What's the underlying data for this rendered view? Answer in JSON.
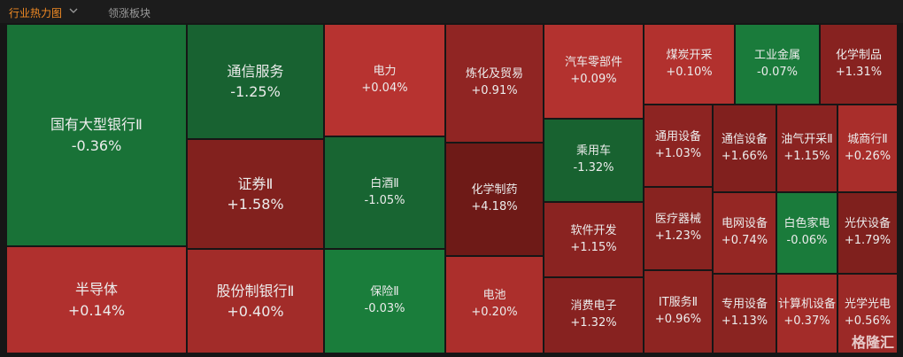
{
  "header": {
    "tabs": [
      "行业热力图",
      "领涨板块"
    ]
  },
  "watermark": "格隆汇",
  "chart_data": {
    "type": "treemap",
    "categories": [
      "国有大型银行Ⅱ",
      "半导体",
      "通信服务",
      "证券Ⅱ",
      "股份制银行Ⅱ",
      "电力",
      "白酒Ⅱ",
      "保险Ⅱ",
      "炼化及贸易",
      "化学制药",
      "电池",
      "汽车零部件",
      "乘用车",
      "软件开发",
      "消费电子",
      "煤炭开采",
      "工业金属",
      "化学制品",
      "通用设备",
      "医疗器械",
      "IT服务Ⅱ",
      "通信设备",
      "电网设备",
      "专用设备",
      "油气开采Ⅱ",
      "白色家电",
      "计算机设备",
      "城商行Ⅱ",
      "光伏设备",
      "光学光电"
    ],
    "values": [
      -0.36,
      0.14,
      -1.25,
      1.58,
      0.4,
      0.04,
      -1.05,
      -0.03,
      0.91,
      4.18,
      0.2,
      0.09,
      -1.32,
      1.15,
      1.32,
      0.1,
      -0.07,
      1.31,
      1.03,
      1.23,
      0.96,
      1.66,
      0.74,
      1.13,
      1.15,
      -0.06,
      0.37,
      0.26,
      1.79,
      0.56
    ],
    "value_labels": [
      "-0.36%",
      "+0.14%",
      "-1.25%",
      "+1.58%",
      "+0.40%",
      "+0.04%",
      "-1.05%",
      "-0.03%",
      "+0.91%",
      "+4.18%",
      "+0.20%",
      "+0.09%",
      "-1.32%",
      "+1.15%",
      "+1.32%",
      "+0.10%",
      "-0.07%",
      "+1.31%",
      "+1.03%",
      "+1.23%",
      "+0.96%",
      "+1.66%",
      "+0.74%",
      "+1.13%",
      "+1.15%",
      "-0.06%",
      "+0.37%",
      "+0.26%",
      "+1.79%",
      "+0.56%"
    ]
  }
}
